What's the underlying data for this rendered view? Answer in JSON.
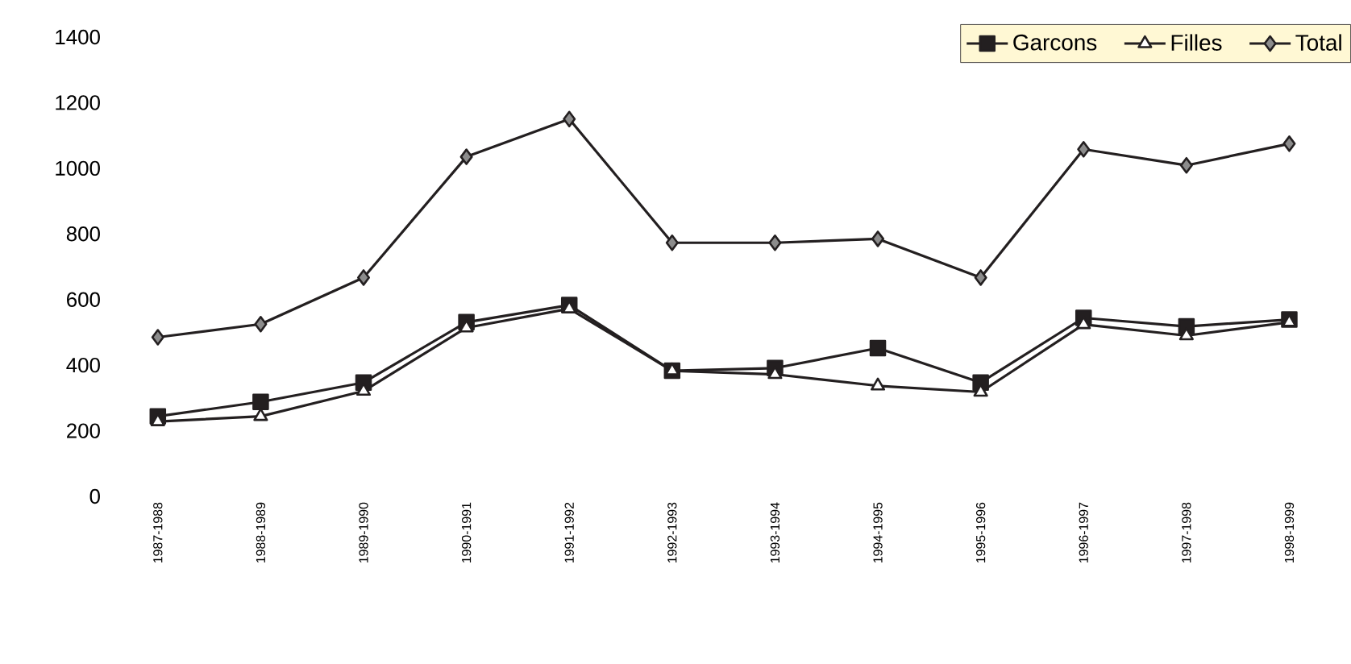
{
  "chart_data": {
    "type": "line",
    "categories": [
      "1987-1988",
      "1988-1989",
      "1989-1990",
      "1990-1991",
      "1991-1992",
      "1992-1993",
      "1993-1994",
      "1994-1995",
      "1995-1996",
      "1996-1997",
      "1997-1998",
      "1998-1999"
    ],
    "series": [
      {
        "name": "Garcons",
        "color": "#231f20",
        "marker": "square",
        "values": [
          244,
          288,
          347,
          531,
          583,
          383,
          391,
          452,
          347,
          544,
          518,
          539
        ]
      },
      {
        "name": "Filles",
        "color": "#ffffff",
        "marker": "triangle",
        "values": [
          228,
          244,
          321,
          514,
          572,
          383,
          372,
          337,
          318,
          524,
          490,
          531
        ]
      },
      {
        "name": "Total",
        "color": "#8c8c8c",
        "marker": "diamond",
        "values": [
          485,
          525,
          667,
          1035,
          1150,
          773,
          773,
          785,
          667,
          1058,
          1009,
          1075
        ]
      }
    ],
    "ylim": [
      0,
      1400
    ],
    "yticks": [
      0,
      200,
      400,
      600,
      800,
      1000,
      1200,
      1400
    ],
    "grid": false,
    "legend": "top right",
    "line_style": "solid"
  }
}
